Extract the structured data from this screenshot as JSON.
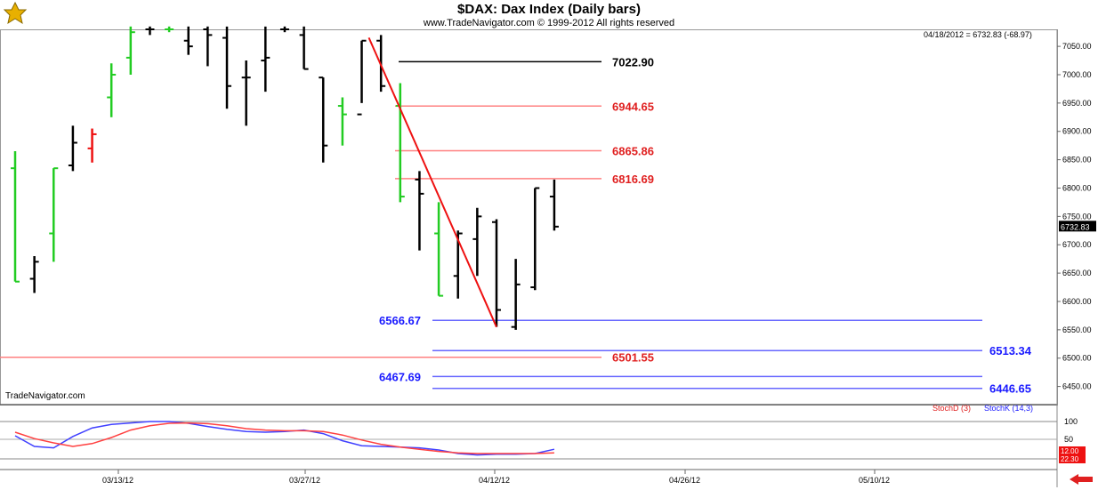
{
  "header": {
    "title": "$DAX:  Dax Index  (Daily bars)",
    "copyright": "www.TradeNavigator.com © 1999-2012 All rights reserved",
    "info": "04/18/2012 = 6732.83 (-68.97)",
    "brand": "TradeNavigator.com"
  },
  "chart_data": {
    "type": "ohlc",
    "price_axis": {
      "ticks": [
        "7050.00",
        "7000.00",
        "6950.00",
        "6900.00",
        "6850.00",
        "6800.00",
        "6750.00",
        "6700.00",
        "6650.00",
        "6600.00",
        "6550.00",
        "6500.00",
        "6450.00"
      ],
      "current_label": "6732.83",
      "ylim": [
        6418,
        7080
      ]
    },
    "date_axis": {
      "ticks": [
        "03/13/12",
        "03/27/12",
        "04/12/12",
        "04/26/12",
        "05/10/12"
      ]
    },
    "bars": [
      {
        "o": 6835,
        "h": 6865,
        "l": 6635,
        "c": 6635,
        "color": "green"
      },
      {
        "o": 6640,
        "h": 6680,
        "l": 6615,
        "c": 6670,
        "color": "black"
      },
      {
        "o": 6720,
        "h": 6835,
        "l": 6670,
        "c": 6835,
        "color": "green"
      },
      {
        "o": 6840,
        "h": 6910,
        "l": 6830,
        "c": 6880,
        "color": "black"
      },
      {
        "o": 6870,
        "h": 6905,
        "l": 6845,
        "c": 6895,
        "color": "red"
      },
      {
        "o": 6960,
        "h": 7020,
        "l": 6925,
        "c": 7000,
        "color": "green"
      },
      {
        "o": 7030,
        "h": 7085,
        "l": 7000,
        "c": 7075,
        "color": "green"
      },
      {
        "o": 7080,
        "h": 7085,
        "l": 7070,
        "c": 7080,
        "color": "black"
      },
      {
        "o": 7080,
        "h": 7085,
        "l": 7075,
        "c": 7080,
        "color": "green"
      },
      {
        "o": 7060,
        "h": 7085,
        "l": 7035,
        "c": 7050,
        "color": "black"
      },
      {
        "o": 7080,
        "h": 7085,
        "l": 7015,
        "c": 7070,
        "color": "black"
      },
      {
        "o": 7065,
        "h": 7085,
        "l": 6940,
        "c": 6980,
        "color": "black"
      },
      {
        "o": 6995,
        "h": 7025,
        "l": 6910,
        "c": 6995,
        "color": "black"
      },
      {
        "o": 7025,
        "h": 7085,
        "l": 6970,
        "c": 7030,
        "color": "black"
      },
      {
        "o": 7080,
        "h": 7085,
        "l": 7075,
        "c": 7080,
        "color": "black"
      },
      {
        "o": 7070,
        "h": 7085,
        "l": 7010,
        "c": 7010,
        "color": "black"
      },
      {
        "o": 6995,
        "h": 6995,
        "l": 6845,
        "c": 6875,
        "color": "black"
      },
      {
        "o": 6945,
        "h": 6960,
        "l": 6875,
        "c": 6930,
        "color": "green"
      },
      {
        "o": 6930,
        "h": 7060,
        "l": 6950,
        "c": 7060,
        "color": "black"
      },
      {
        "o": 7060,
        "h": 7070,
        "l": 6970,
        "c": 6980,
        "color": "black"
      },
      {
        "o": 6945,
        "h": 6985,
        "l": 6775,
        "c": 6785,
        "color": "green"
      },
      {
        "o": 6815,
        "h": 6830,
        "l": 6690,
        "c": 6790,
        "color": "black"
      },
      {
        "o": 6720,
        "h": 6775,
        "l": 6610,
        "c": 6610,
        "color": "green"
      },
      {
        "o": 6645,
        "h": 6725,
        "l": 6605,
        "c": 6720,
        "color": "black"
      },
      {
        "o": 6710,
        "h": 6765,
        "l": 6645,
        "c": 6750,
        "color": "black"
      },
      {
        "o": 6740,
        "h": 6745,
        "l": 6555,
        "c": 6585,
        "color": "black"
      },
      {
        "o": 6555,
        "h": 6675,
        "l": 6550,
        "c": 6630,
        "color": "black"
      },
      {
        "o": 6625,
        "h": 6800,
        "l": 6620,
        "c": 6800,
        "color": "black"
      },
      {
        "o": 6785,
        "h": 6815,
        "l": 6725,
        "c": 6732,
        "color": "black"
      }
    ],
    "levels_red": [
      {
        "label": "7022.90",
        "value": 7022.9,
        "color": "#000000"
      },
      {
        "label": "6944.65",
        "value": 6944.65,
        "color": "#ff4040"
      },
      {
        "label": "6865.86",
        "value": 6865.86,
        "color": "#ff4040"
      },
      {
        "label": "6816.69",
        "value": 6816.69,
        "color": "#ff4040"
      },
      {
        "label": "6501.55",
        "value": 6501.55,
        "color": "#ff4040"
      }
    ],
    "levels_blue": [
      {
        "label": "6566.67",
        "value": 6566.67
      },
      {
        "label": "6513.34",
        "value": 6513.34
      },
      {
        "label": "6467.69",
        "value": 6467.69
      },
      {
        "label": "6446.65",
        "value": 6446.65
      }
    ],
    "trendline": {
      "from_bar": 18,
      "from_value": 7070,
      "to_bar": 25,
      "to_value": 6555
    },
    "stochastic": {
      "legend_d": "StochD (3)",
      "legend_k": "StochK (14,3)",
      "axis_ticks": [
        "100",
        "50"
      ],
      "last_d": "12.00",
      "last_k": "22.30",
      "d_values": [
        70,
        52,
        40,
        30,
        38,
        55,
        76,
        88,
        95,
        96,
        94,
        88,
        80,
        76,
        74,
        74,
        72,
        62,
        48,
        36,
        28,
        22,
        16,
        12,
        10,
        10,
        10,
        10,
        12
      ],
      "k_values": [
        60,
        30,
        26,
        58,
        82,
        92,
        96,
        100,
        100,
        95,
        86,
        78,
        72,
        70,
        72,
        76,
        66,
        46,
        32,
        30,
        28,
        26,
        20,
        10,
        6,
        8,
        8,
        10,
        22
      ]
    }
  }
}
